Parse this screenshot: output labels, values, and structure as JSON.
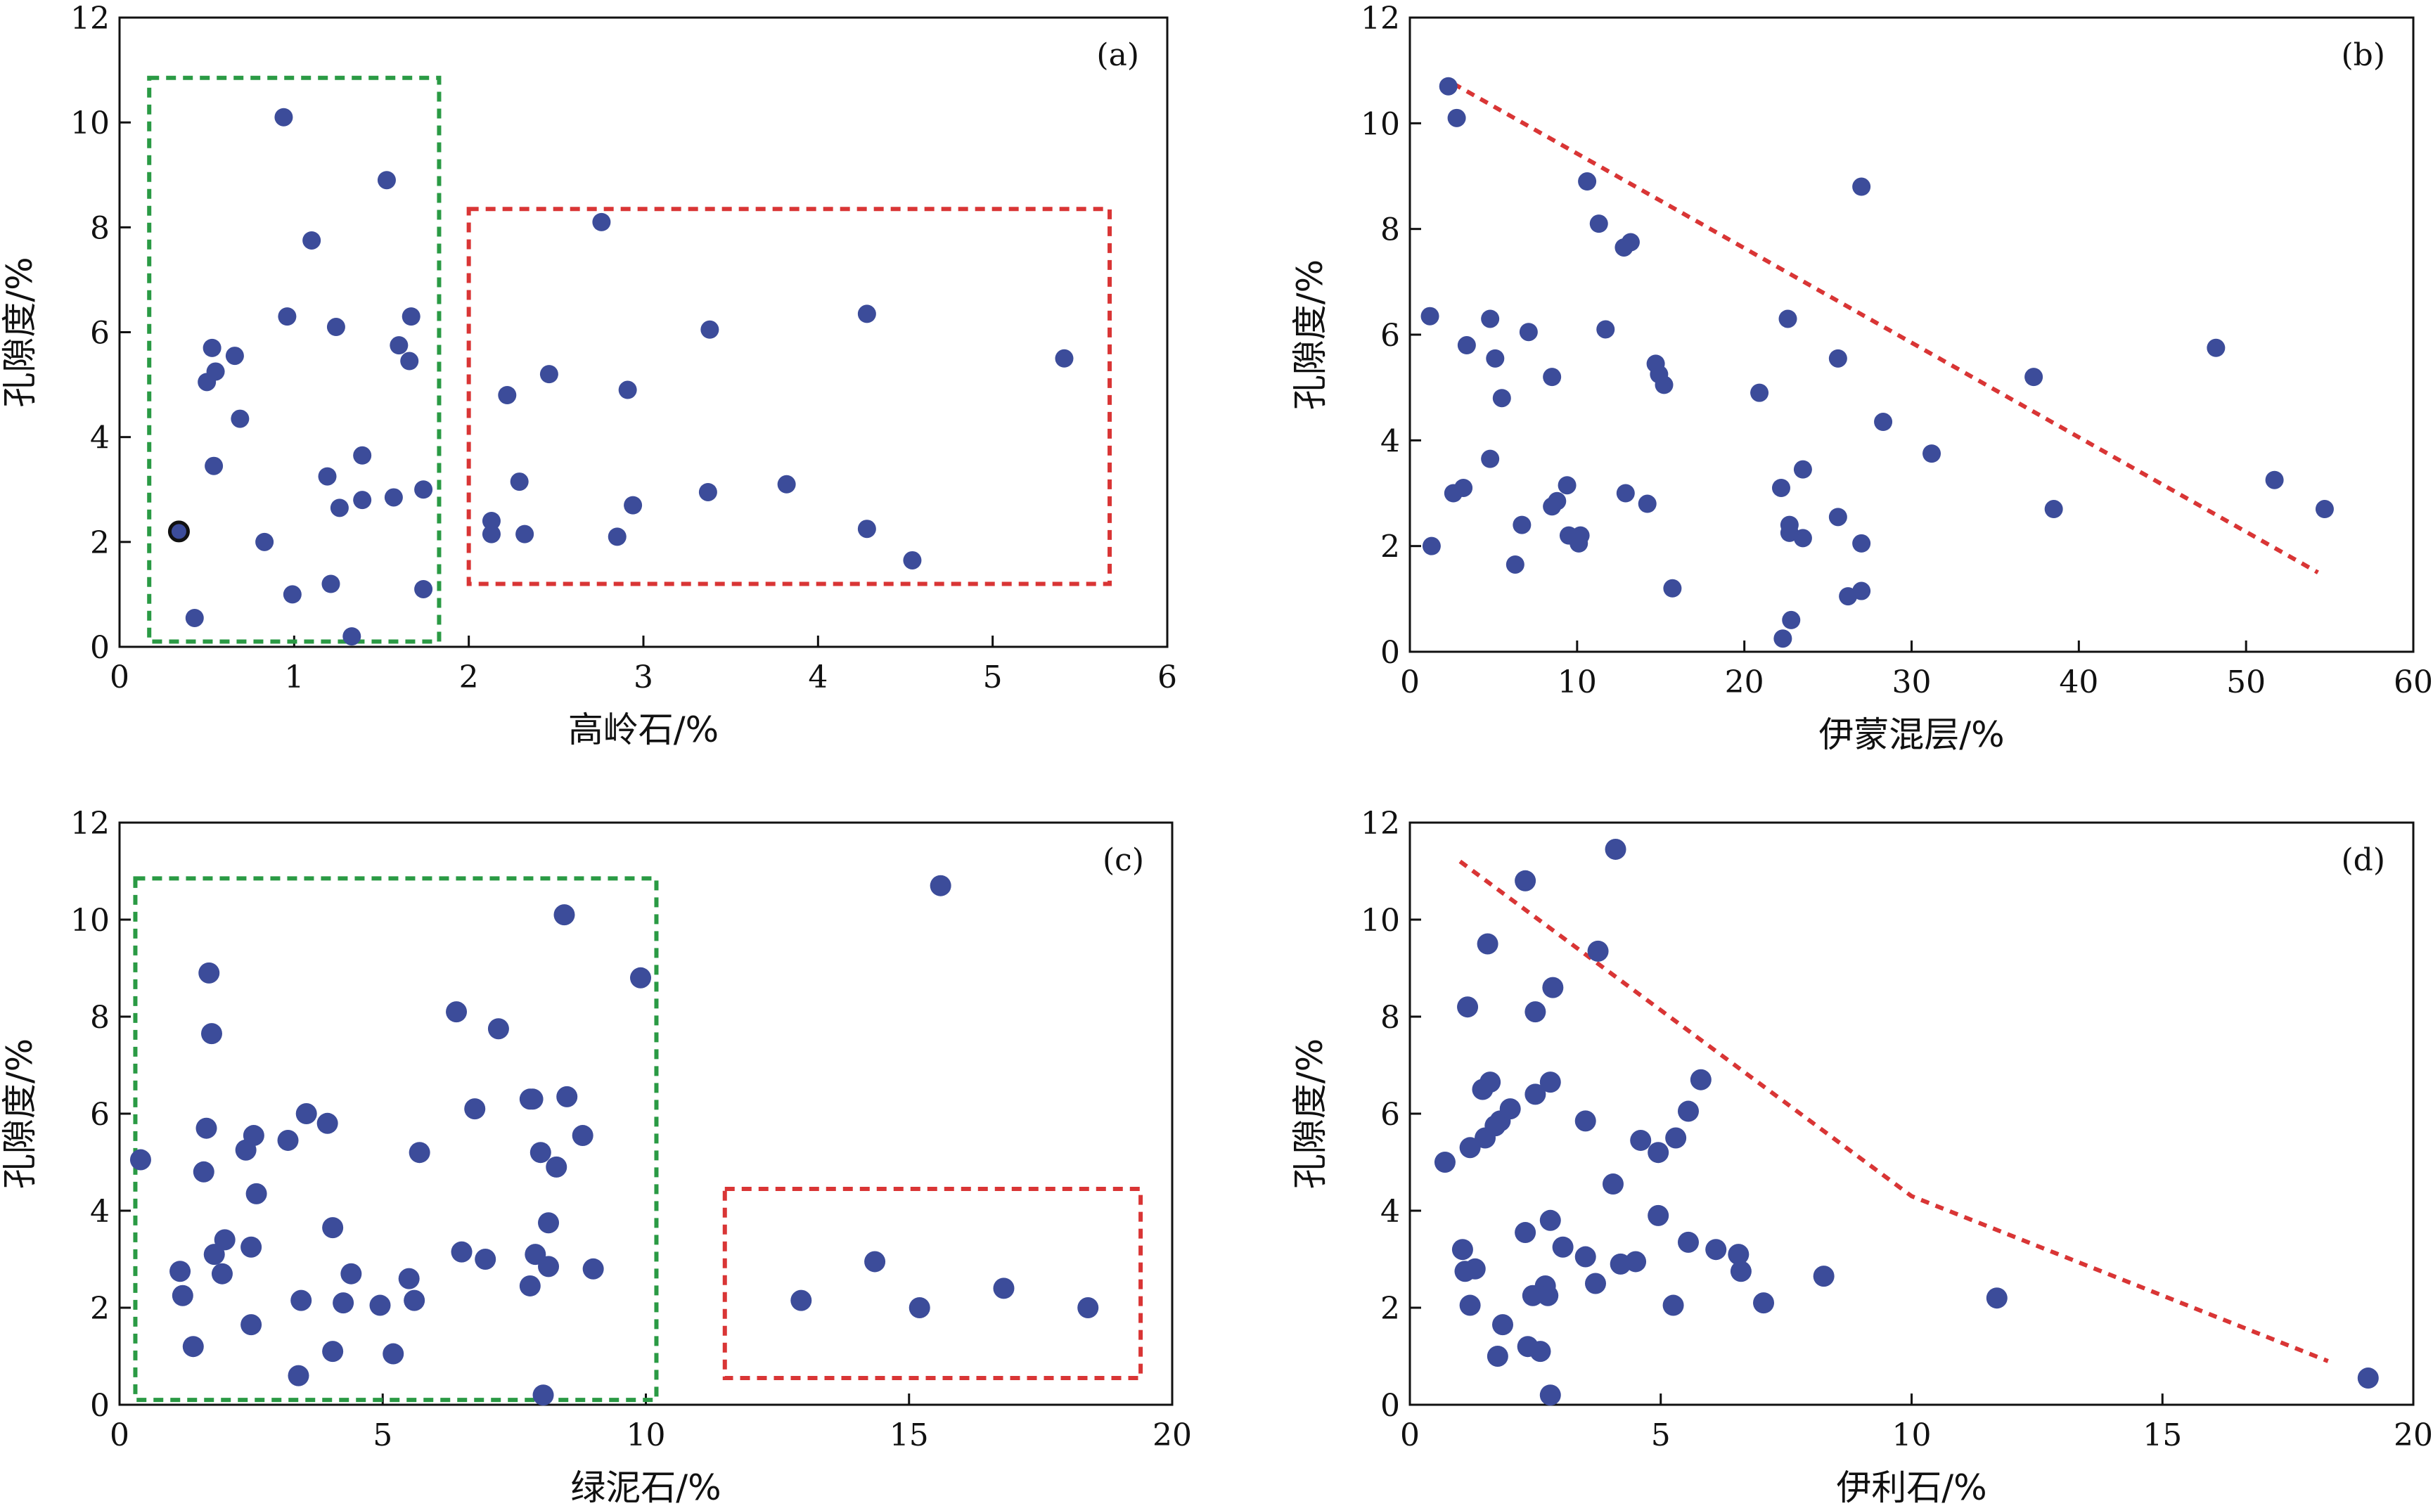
{
  "chart_data": [
    {
      "type": "scatter",
      "panel": "(a)",
      "xlabel": "高岭石/%",
      "ylabel": "孔隙度/%",
      "xlim": [
        0,
        6
      ],
      "ylim": [
        0,
        12
      ],
      "xticks": [
        0,
        1,
        2,
        3,
        4,
        5,
        6
      ],
      "yticks": [
        0,
        2,
        4,
        6,
        8,
        10,
        12
      ],
      "points": [
        [
          0.34,
          2.2
        ],
        [
          0.43,
          0.55
        ],
        [
          0.5,
          5.05
        ],
        [
          0.53,
          5.7
        ],
        [
          0.54,
          3.45
        ],
        [
          0.55,
          5.25
        ],
        [
          0.66,
          5.55
        ],
        [
          0.69,
          4.35
        ],
        [
          0.83,
          2.0
        ],
        [
          0.94,
          10.1
        ],
        [
          0.96,
          6.3
        ],
        [
          0.99,
          1.0
        ],
        [
          1.1,
          7.75
        ],
        [
          1.19,
          3.25
        ],
        [
          1.21,
          1.2
        ],
        [
          1.24,
          6.1
        ],
        [
          1.26,
          2.65
        ],
        [
          1.33,
          0.2
        ],
        [
          1.39,
          3.65
        ],
        [
          1.39,
          2.8
        ],
        [
          1.53,
          8.9
        ],
        [
          1.57,
          2.85
        ],
        [
          1.6,
          5.75
        ],
        [
          1.66,
          5.45
        ],
        [
          1.67,
          6.3
        ],
        [
          1.74,
          3.0
        ],
        [
          1.74,
          1.1
        ],
        [
          2.13,
          2.4
        ],
        [
          2.13,
          2.15
        ],
        [
          2.22,
          4.8
        ],
        [
          2.29,
          3.15
        ],
        [
          2.32,
          2.15
        ],
        [
          2.46,
          5.2
        ],
        [
          2.76,
          8.1
        ],
        [
          2.85,
          2.1
        ],
        [
          2.91,
          4.9
        ],
        [
          2.94,
          2.7
        ],
        [
          3.37,
          2.95
        ],
        [
          3.38,
          6.05
        ],
        [
          3.82,
          3.1
        ],
        [
          4.28,
          6.35
        ],
        [
          4.28,
          2.25
        ],
        [
          4.54,
          1.65
        ],
        [
          5.41,
          5.5
        ]
      ],
      "highlight_point": [
        0.34,
        2.2
      ],
      "boxes": [
        {
          "color": "#2a9a44",
          "x": [
            0.17,
            1.83
          ],
          "y": [
            0.1,
            10.85
          ]
        },
        {
          "color": "#d93535",
          "x": [
            2.0,
            5.67
          ],
          "y": [
            1.2,
            8.35
          ]
        }
      ]
    },
    {
      "type": "scatter",
      "panel": "(b)",
      "xlabel": "伊蒙混层/%",
      "ylabel": "孔隙度/%",
      "xlim": [
        0,
        60
      ],
      "ylim": [
        0,
        12
      ],
      "xticks": [
        0,
        10,
        20,
        30,
        40,
        50,
        60
      ],
      "yticks": [
        0,
        2,
        4,
        6,
        8,
        10,
        12
      ],
      "points": [
        [
          1.2,
          6.35
        ],
        [
          1.3,
          2.0
        ],
        [
          2.3,
          10.7
        ],
        [
          2.6,
          3.0
        ],
        [
          2.8,
          10.1
        ],
        [
          3.2,
          3.1
        ],
        [
          3.4,
          5.8
        ],
        [
          4.8,
          6.3
        ],
        [
          4.8,
          3.65
        ],
        [
          5.1,
          5.55
        ],
        [
          5.5,
          4.8
        ],
        [
          6.3,
          1.65
        ],
        [
          6.7,
          2.4
        ],
        [
          7.1,
          6.05
        ],
        [
          8.5,
          5.2
        ],
        [
          8.5,
          2.75
        ],
        [
          8.8,
          2.85
        ],
        [
          9.4,
          3.15
        ],
        [
          9.5,
          2.2
        ],
        [
          10.1,
          2.05
        ],
        [
          10.2,
          2.2
        ],
        [
          10.6,
          8.9
        ],
        [
          11.3,
          8.1
        ],
        [
          11.7,
          6.1
        ],
        [
          12.8,
          7.65
        ],
        [
          12.9,
          3.0
        ],
        [
          13.2,
          7.75
        ],
        [
          14.2,
          2.8
        ],
        [
          14.7,
          5.45
        ],
        [
          14.9,
          5.25
        ],
        [
          15.2,
          5.05
        ],
        [
          15.7,
          1.2
        ],
        [
          20.9,
          4.9
        ],
        [
          22.2,
          3.1
        ],
        [
          22.3,
          0.25
        ],
        [
          22.6,
          6.3
        ],
        [
          22.7,
          2.25
        ],
        [
          22.7,
          2.4
        ],
        [
          22.8,
          0.6
        ],
        [
          23.5,
          3.45
        ],
        [
          23.5,
          2.15
        ],
        [
          25.6,
          2.55
        ],
        [
          25.6,
          5.55
        ],
        [
          26.2,
          1.05
        ],
        [
          27.0,
          8.8
        ],
        [
          27.0,
          2.05
        ],
        [
          27.0,
          1.15
        ],
        [
          28.3,
          4.35
        ],
        [
          31.2,
          3.75
        ],
        [
          37.3,
          5.2
        ],
        [
          38.5,
          2.7
        ],
        [
          48.2,
          5.75
        ],
        [
          51.7,
          3.25
        ],
        [
          54.7,
          2.7
        ]
      ],
      "trend_line": {
        "color": "#d93535",
        "points": [
          [
            2.6,
            10.75
          ],
          [
            54.3,
            1.5
          ]
        ]
      }
    },
    {
      "type": "scatter",
      "panel": "(c)",
      "xlabel": "绿泥石/%",
      "ylabel": "孔隙度/%",
      "xlim": [
        0,
        20
      ],
      "ylim": [
        0,
        12
      ],
      "xticks": [
        0,
        5,
        10,
        15,
        20
      ],
      "yticks": [
        0,
        2,
        4,
        6,
        8,
        10,
        12
      ],
      "points": [
        [
          0.4,
          5.05
        ],
        [
          1.15,
          2.75
        ],
        [
          1.2,
          2.25
        ],
        [
          1.4,
          1.2
        ],
        [
          1.6,
          4.8
        ],
        [
          1.65,
          5.7
        ],
        [
          1.7,
          8.9
        ],
        [
          1.75,
          7.65
        ],
        [
          1.8,
          3.1
        ],
        [
          1.95,
          2.7
        ],
        [
          2.0,
          3.4
        ],
        [
          2.4,
          5.25
        ],
        [
          2.5,
          3.25
        ],
        [
          2.5,
          1.65
        ],
        [
          2.55,
          5.55
        ],
        [
          2.6,
          4.35
        ],
        [
          3.2,
          5.45
        ],
        [
          3.4,
          0.6
        ],
        [
          3.45,
          2.15
        ],
        [
          3.55,
          6.0
        ],
        [
          3.95,
          5.8
        ],
        [
          4.05,
          1.1
        ],
        [
          4.05,
          3.65
        ],
        [
          4.25,
          2.1
        ],
        [
          4.4,
          2.7
        ],
        [
          4.95,
          2.05
        ],
        [
          5.2,
          1.05
        ],
        [
          5.5,
          2.6
        ],
        [
          5.6,
          2.15
        ],
        [
          5.7,
          5.2
        ],
        [
          6.4,
          8.1
        ],
        [
          6.5,
          3.15
        ],
        [
          6.75,
          6.1
        ],
        [
          6.95,
          3.0
        ],
        [
          7.2,
          7.75
        ],
        [
          7.8,
          6.3
        ],
        [
          7.8,
          2.45
        ],
        [
          7.85,
          6.3
        ],
        [
          7.9,
          3.1
        ],
        [
          8.0,
          5.2
        ],
        [
          8.05,
          0.2
        ],
        [
          8.15,
          3.75
        ],
        [
          8.15,
          2.85
        ],
        [
          8.3,
          4.9
        ],
        [
          8.45,
          10.1
        ],
        [
          8.5,
          6.35
        ],
        [
          8.8,
          5.55
        ],
        [
          9.0,
          2.8
        ],
        [
          9.9,
          8.8
        ],
        [
          12.95,
          2.15
        ],
        [
          14.35,
          2.95
        ],
        [
          15.2,
          2.0
        ],
        [
          15.6,
          10.7
        ],
        [
          16.8,
          2.4
        ],
        [
          18.4,
          2.0
        ]
      ],
      "boxes": [
        {
          "color": "#2a9a44",
          "x": [
            0.3,
            10.2
          ],
          "y": [
            0.1,
            10.85
          ]
        },
        {
          "color": "#d93535",
          "x": [
            11.5,
            19.4
          ],
          "y": [
            0.55,
            4.45
          ]
        }
      ]
    },
    {
      "type": "scatter",
      "panel": "(d)",
      "xlabel": "伊利石/%",
      "ylabel": "孔隙度/%",
      "xlim": [
        0,
        20
      ],
      "ylim": [
        0,
        12
      ],
      "xticks": [
        0,
        5,
        10,
        15,
        20
      ],
      "yticks": [
        0,
        2,
        4,
        6,
        8,
        10,
        12
      ],
      "points": [
        [
          0.7,
          5.0
        ],
        [
          1.05,
          3.2
        ],
        [
          1.1,
          2.75
        ],
        [
          1.15,
          8.2
        ],
        [
          1.2,
          5.3
        ],
        [
          1.2,
          2.05
        ],
        [
          1.3,
          2.8
        ],
        [
          1.45,
          6.5
        ],
        [
          1.5,
          5.5
        ],
        [
          1.55,
          9.5
        ],
        [
          1.6,
          6.65
        ],
        [
          1.7,
          5.75
        ],
        [
          1.75,
          1.0
        ],
        [
          1.8,
          5.85
        ],
        [
          1.85,
          1.65
        ],
        [
          2.0,
          6.1
        ],
        [
          2.3,
          10.8
        ],
        [
          2.3,
          3.55
        ],
        [
          2.35,
          1.2
        ],
        [
          2.45,
          2.25
        ],
        [
          2.5,
          6.4
        ],
        [
          2.5,
          8.1
        ],
        [
          2.6,
          1.1
        ],
        [
          2.7,
          2.45
        ],
        [
          2.75,
          2.25
        ],
        [
          2.8,
          3.8
        ],
        [
          2.8,
          6.65
        ],
        [
          2.8,
          0.2
        ],
        [
          2.85,
          8.6
        ],
        [
          3.05,
          3.25
        ],
        [
          3.5,
          5.85
        ],
        [
          3.5,
          3.05
        ],
        [
          3.7,
          2.5
        ],
        [
          3.75,
          9.35
        ],
        [
          4.05,
          4.55
        ],
        [
          4.1,
          11.45
        ],
        [
          4.2,
          2.9
        ],
        [
          4.5,
          2.95
        ],
        [
          4.6,
          5.45
        ],
        [
          4.95,
          5.2
        ],
        [
          4.95,
          3.9
        ],
        [
          5.25,
          2.05
        ],
        [
          5.3,
          5.5
        ],
        [
          5.55,
          3.35
        ],
        [
          5.55,
          6.05
        ],
        [
          5.8,
          6.7
        ],
        [
          6.1,
          3.2
        ],
        [
          6.55,
          3.1
        ],
        [
          6.6,
          2.75
        ],
        [
          7.05,
          2.1
        ],
        [
          8.25,
          2.65
        ],
        [
          11.7,
          2.2
        ],
        [
          19.1,
          0.55
        ]
      ],
      "trend_line": {
        "color": "#d93535",
        "points": [
          [
            1.0,
            11.2
          ],
          [
            10.0,
            4.3
          ],
          [
            18.3,
            0.9
          ]
        ]
      }
    }
  ]
}
